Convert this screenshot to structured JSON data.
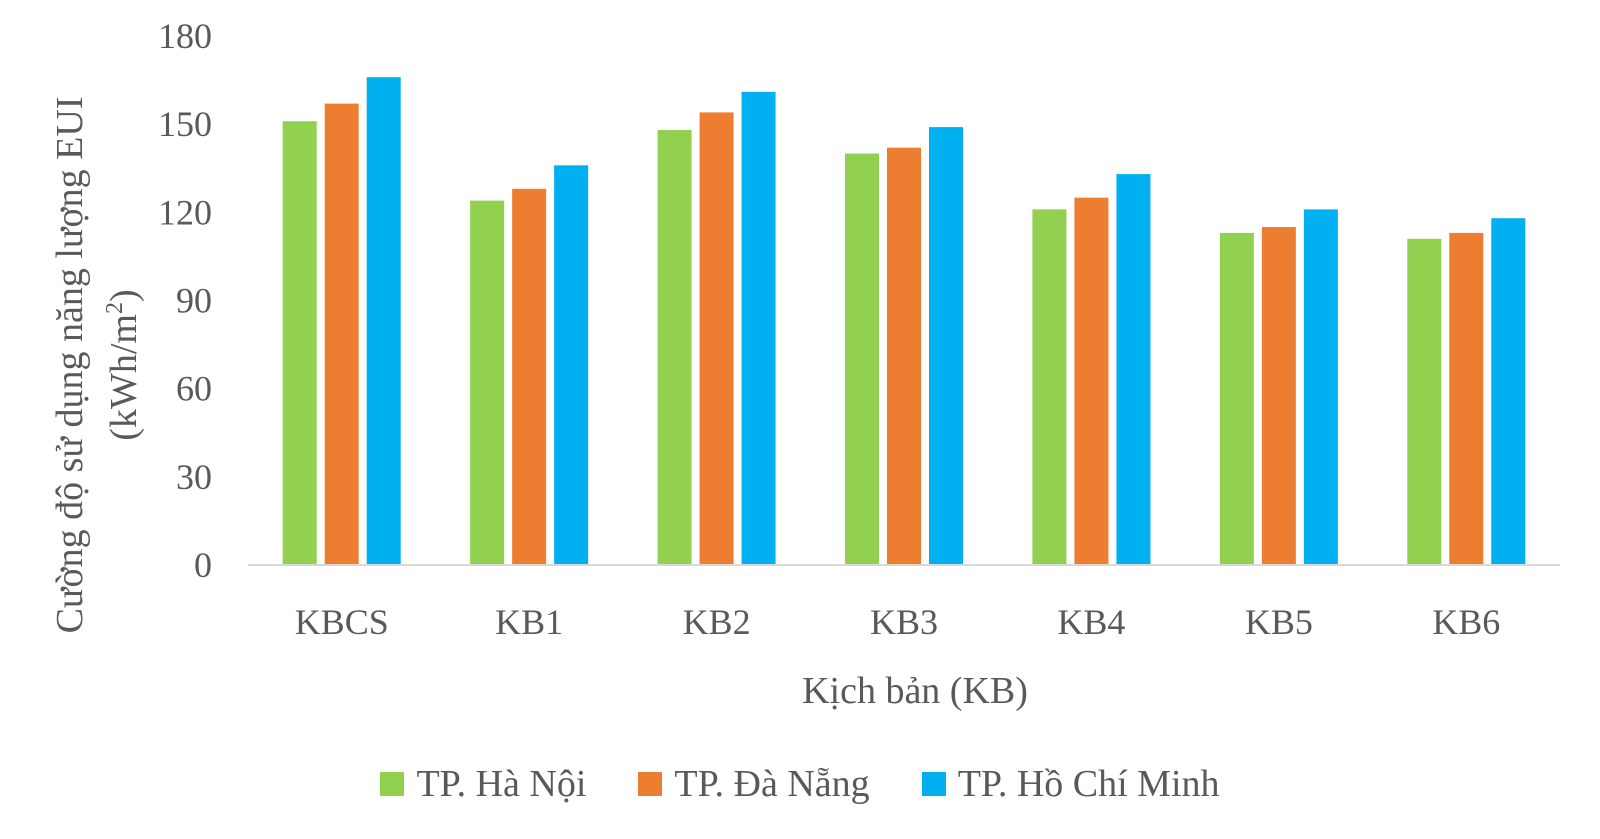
{
  "chart_data": {
    "type": "bar",
    "title": "",
    "xlabel": "Kịch bản (KB)",
    "ylabel_line1": "Cường độ sử dụng năng lượng EUI",
    "ylabel_line2_pre": "(kWh/m",
    "ylabel_line2_sup": "2",
    "ylabel_line2_post": ")",
    "ylim": [
      0,
      180
    ],
    "yticks": [
      0,
      30,
      60,
      90,
      120,
      150,
      180
    ],
    "grid": false,
    "legend_position": "bottom",
    "categories": [
      "KBCS",
      "KB1",
      "KB2",
      "KB3",
      "KB4",
      "KB5",
      "KB6"
    ],
    "series": [
      {
        "name": "TP. Hà Nội",
        "color": "#92D050",
        "values": [
          151,
          124,
          148,
          140,
          121,
          113,
          111
        ]
      },
      {
        "name": "TP. Đà Nẵng",
        "color": "#ED7D31",
        "values": [
          157,
          128,
          154,
          142,
          125,
          115,
          113
        ]
      },
      {
        "name": "TP. Hồ Chí Minh",
        "color": "#00B0F0",
        "values": [
          166,
          136,
          161,
          149,
          133,
          121,
          118
        ]
      }
    ]
  }
}
